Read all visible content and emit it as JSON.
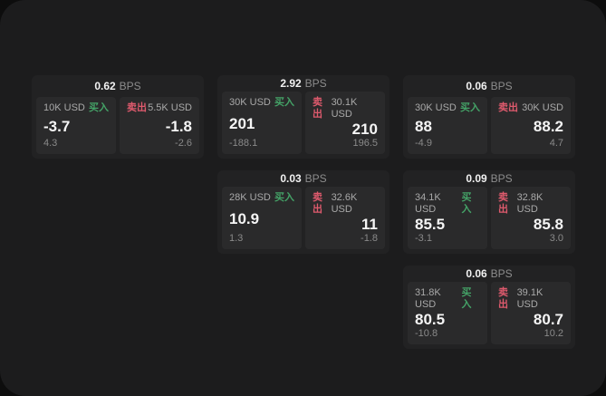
{
  "labels": {
    "bps_unit": "BPS",
    "buy": "买入",
    "sell": "卖出"
  },
  "colors": {
    "buy_accent": "#44a267",
    "sell_accent": "#de5a6d",
    "window_bg": "#1c1c1d",
    "card_bg": "#222223",
    "panel_bg": "#2a2a2b"
  },
  "cards": [
    {
      "row": 0,
      "col": 0,
      "bps": "0.62",
      "buy_side": {
        "amount": "10K USD",
        "price": "-3.7",
        "change": "4.3"
      },
      "sell_side": {
        "amount": "5.5K USD",
        "price": "-1.8",
        "change": "-2.6"
      }
    },
    {
      "row": 0,
      "col": 1,
      "bps": "2.92",
      "buy_side": {
        "amount": "30K USD",
        "price": "201",
        "change": "-188.1"
      },
      "sell_side": {
        "amount": "30.1K USD",
        "price": "210",
        "change": "196.5"
      }
    },
    {
      "row": 0,
      "col": 2,
      "bps": "0.06",
      "buy_side": {
        "amount": "30K USD",
        "price": "88",
        "change": "-4.9"
      },
      "sell_side": {
        "amount": "30K USD",
        "price": "88.2",
        "change": "4.7"
      }
    },
    {
      "row": 1,
      "col": 1,
      "bps": "0.03",
      "buy_side": {
        "amount": "28K USD",
        "price": "10.9",
        "change": "1.3"
      },
      "sell_side": {
        "amount": "32.6K USD",
        "price": "11",
        "change": "-1.8"
      }
    },
    {
      "row": 1,
      "col": 2,
      "bps": "0.09",
      "buy_side": {
        "amount": "34.1K USD",
        "price": "85.5",
        "change": "-3.1"
      },
      "sell_side": {
        "amount": "32.8K USD",
        "price": "85.8",
        "change": "3.0"
      }
    },
    {
      "row": 2,
      "col": 2,
      "bps": "0.06",
      "buy_side": {
        "amount": "31.8K USD",
        "price": "80.5",
        "change": "-10.8"
      },
      "sell_side": {
        "amount": "39.1K USD",
        "price": "80.7",
        "change": "10.2"
      }
    }
  ]
}
